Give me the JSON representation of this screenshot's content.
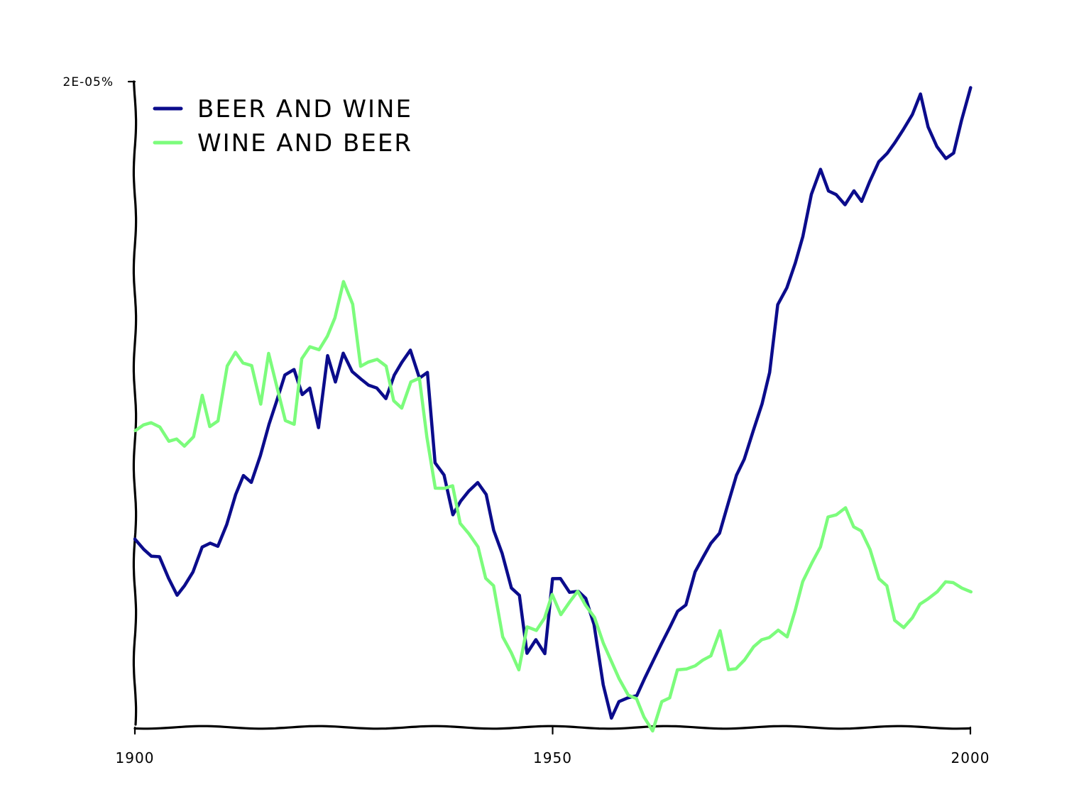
{
  "chart_data": {
    "type": "line",
    "x_range": [
      1900,
      2000
    ],
    "y_range": [
      0,
      2e-05
    ],
    "y_top_tick_label": "2E-05%",
    "x_tick_labels": [
      {
        "value": 1900,
        "label": "1900"
      },
      {
        "value": 1950,
        "label": "1950"
      },
      {
        "value": 2000,
        "label": "2000"
      }
    ],
    "legend_position": "top-left",
    "grid": false,
    "x": [
      1900,
      1901,
      1902,
      1903,
      1904,
      1905,
      1906,
      1907,
      1908,
      1909,
      1910,
      1911,
      1912,
      1913,
      1914,
      1915,
      1916,
      1917,
      1918,
      1919,
      1920,
      1921,
      1922,
      1923,
      1924,
      1925,
      1926,
      1927,
      1928,
      1929,
      1930,
      1931,
      1932,
      1933,
      1934,
      1935,
      1936,
      1937,
      1938,
      1939,
      1940,
      1941,
      1942,
      1943,
      1944,
      1945,
      1946,
      1947,
      1948,
      1949,
      1950,
      1951,
      1952,
      1953,
      1954,
      1955,
      1956,
      1957,
      1958,
      1959,
      1960,
      1961,
      1962,
      1963,
      1964,
      1965,
      1966,
      1967,
      1968,
      1969,
      1970,
      1971,
      1972,
      1973,
      1974,
      1975,
      1976,
      1977,
      1978,
      1979,
      1980,
      1981,
      1982,
      1983,
      1984,
      1985,
      1986,
      1987,
      1988,
      1989,
      1990,
      1991,
      1992,
      1993,
      1994,
      1995,
      1996,
      1997,
      1998,
      1999,
      2000
    ],
    "series": [
      {
        "name": "BEER AND WINE",
        "color": "#0b0c8c",
        "values": [
          5.85e-06,
          5.5e-06,
          5.3e-06,
          5.3e-06,
          4.6e-06,
          4.1e-06,
          4.4e-06,
          4.8e-06,
          5.6e-06,
          5.7e-06,
          5.6e-06,
          6.3e-06,
          7.2e-06,
          7.8e-06,
          7.6e-06,
          8.4e-06,
          9.4e-06,
          1.01e-05,
          1.09e-05,
          1.11e-05,
          1.03e-05,
          1.05e-05,
          9.3e-06,
          1.15e-05,
          1.07e-05,
          1.16e-05,
          1.1e-05,
          1.08e-05,
          1.06e-05,
          1.05e-05,
          1.02e-05,
          1.09e-05,
          1.13e-05,
          1.17e-05,
          1.08e-05,
          1.1e-05,
          8.2e-06,
          7.8e-06,
          6.6e-06,
          7e-06,
          7.3e-06,
          7.6e-06,
          7.2e-06,
          6.1e-06,
          5.4e-06,
          4.3e-06,
          4.1e-06,
          2.3e-06,
          2.7e-06,
          2.3e-06,
          4.6e-06,
          4.6e-06,
          4.2e-06,
          4.2e-06,
          4e-06,
          3.2e-06,
          1.3e-06,
          3e-07,
          8e-07,
          9e-07,
          1e-06,
          1.5e-06,
          2e-06,
          2.6e-06,
          3.1e-06,
          3.6e-06,
          3.8e-06,
          4.8e-06,
          5.3e-06,
          5.7e-06,
          6e-06,
          7e-06,
          7.8e-06,
          8.3e-06,
          9.2e-06,
          1e-05,
          1.1e-05,
          1.31e-05,
          1.36e-05,
          1.44e-05,
          1.52e-05,
          1.65e-05,
          1.73e-05,
          1.66e-05,
          1.65e-05,
          1.62e-05,
          1.66e-05,
          1.63e-05,
          1.69e-05,
          1.75e-05,
          1.78e-05,
          1.81e-05,
          1.85e-05,
          1.9e-05,
          1.96e-05,
          1.86e-05,
          1.8e-05,
          1.76e-05,
          1.78e-05,
          1.88e-05,
          1.98e-05
        ]
      },
      {
        "name": "WINE AND BEER",
        "color": "#7cfc7c",
        "values": [
          9.2e-06,
          9.35e-06,
          9.45e-06,
          9.3e-06,
          8.85e-06,
          8.95e-06,
          8.7e-06,
          9e-06,
          1.03e-05,
          9.3e-06,
          9.5e-06,
          1.12e-05,
          1.16e-05,
          1.13e-05,
          1.12e-05,
          1e-05,
          1.16e-05,
          1.06e-05,
          9.5e-06,
          9.4e-06,
          1.14e-05,
          1.18e-05,
          1.17e-05,
          1.21e-05,
          1.27e-05,
          1.38e-05,
          1.31e-05,
          1.12e-05,
          1.13e-05,
          1.14e-05,
          1.12e-05,
          1.01e-05,
          9.9e-06,
          1.07e-05,
          1.08e-05,
          9e-06,
          7.4e-06,
          7.4e-06,
          7.5e-06,
          6.3e-06,
          6e-06,
          5.6e-06,
          4.6e-06,
          4.4e-06,
          2.8e-06,
          2.3e-06,
          1.8e-06,
          3.1e-06,
          3e-06,
          3.4e-06,
          4.1e-06,
          3.5e-06,
          3.9e-06,
          4.2e-06,
          3.8e-06,
          3.4e-06,
          2.6e-06,
          2.1e-06,
          1.5e-06,
          1e-06,
          9e-07,
          3e-07,
          -1e-07,
          8e-07,
          9e-07,
          1.8e-06,
          1.8e-06,
          1.9e-06,
          2.1e-06,
          2.2e-06,
          3e-06,
          1.8e-06,
          1.8e-06,
          2.1e-06,
          2.5e-06,
          2.7e-06,
          2.8e-06,
          3e-06,
          2.8e-06,
          3.6e-06,
          4.5e-06,
          5.1e-06,
          5.6e-06,
          6.5e-06,
          6.6e-06,
          6.8e-06,
          6.2e-06,
          6.1e-06,
          5.5e-06,
          4.6e-06,
          4.4e-06,
          3.3e-06,
          3.1e-06,
          3.4e-06,
          3.8e-06,
          4e-06,
          4.2e-06,
          4.5e-06,
          4.5e-06,
          4.3e-06,
          4.2e-06
        ]
      }
    ]
  }
}
